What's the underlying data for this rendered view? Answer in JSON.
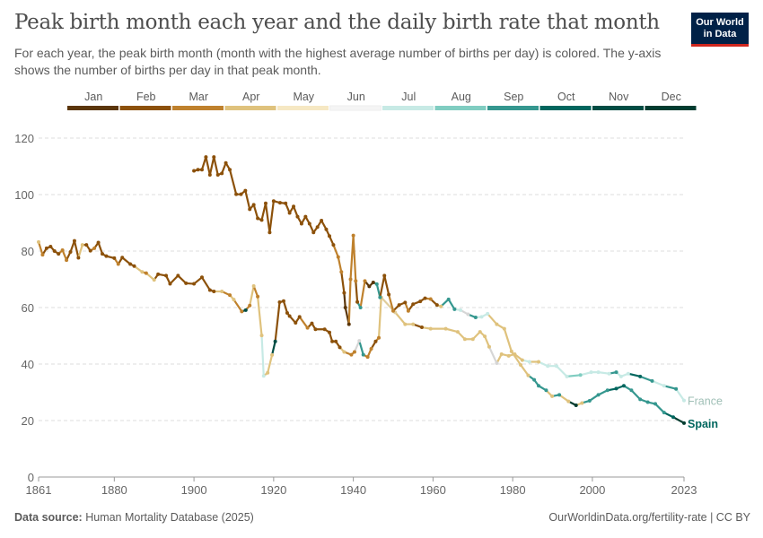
{
  "header": {
    "title": "Peak birth month each year and the daily birth rate that month",
    "subtitle": "For each year, the peak birth month (month with the highest average number of births per day) is colored. The y-axis shows the number of births per day in that peak month.",
    "logo_text": "Our World in Data"
  },
  "footer": {
    "source_label": "Data source:",
    "source": "Human Mortality Database (2025)",
    "right": "OurWorldinData.org/fertility-rate | CC BY"
  },
  "chart_data": {
    "type": "line",
    "title": "Peak birth month each year and the daily birth rate that month",
    "xlabel": "",
    "ylabel": "",
    "xlim": [
      1861,
      2023
    ],
    "ylim": [
      0,
      120
    ],
    "xticks": [
      1861,
      1880,
      1900,
      1920,
      1940,
      1960,
      1980,
      2000,
      2023
    ],
    "yticks": [
      0,
      20,
      40,
      60,
      80,
      100,
      120
    ],
    "grid": "horizontal dashed",
    "legend": {
      "placement": "top",
      "type": "color-scale",
      "months": [
        "Jan",
        "Feb",
        "Mar",
        "Apr",
        "May",
        "Jun",
        "Jul",
        "Aug",
        "Sep",
        "Oct",
        "Nov",
        "Dec"
      ],
      "colors": [
        "#5b360a",
        "#8c510a",
        "#bf812d",
        "#dfc27d",
        "#f6e8c3",
        "#f5f5f5",
        "#c7eae5",
        "#80cdc1",
        "#35978f",
        "#01665e",
        "#004d44",
        "#003c30"
      ]
    },
    "series": [
      {
        "name": "France",
        "label_color": "#9fbfb6",
        "points": [
          [
            1861,
            83.2,
            "Apr"
          ],
          [
            1862,
            78.7,
            "Mar"
          ],
          [
            1863,
            81,
            "Feb"
          ],
          [
            1864,
            81.6,
            "Feb"
          ],
          [
            1865,
            80,
            "Feb"
          ],
          [
            1866,
            79,
            "Feb"
          ],
          [
            1867,
            80.3,
            "Mar"
          ],
          [
            1868,
            76.8,
            "Mar"
          ],
          [
            1869,
            79.7,
            "Feb"
          ],
          [
            1870,
            83.6,
            "Feb"
          ],
          [
            1871,
            77.6,
            "Feb"
          ],
          [
            1872,
            82.2,
            "Apr"
          ],
          [
            1873,
            82.2,
            "Feb"
          ],
          [
            1874,
            80.1,
            "Feb"
          ],
          [
            1875,
            81,
            "Mar"
          ],
          [
            1876,
            83,
            "Feb"
          ],
          [
            1877,
            79,
            "Feb"
          ],
          [
            1878,
            78.2,
            "Feb"
          ],
          [
            1880,
            77.5,
            "Feb"
          ],
          [
            1881,
            75.4,
            "Mar"
          ],
          [
            1882,
            77.7,
            "Feb"
          ],
          [
            1884,
            75.4,
            "Feb"
          ],
          [
            1885,
            74.7,
            "Feb"
          ],
          [
            1887,
            72.6,
            "Apr"
          ],
          [
            1888,
            72.2,
            "Mar"
          ],
          [
            1890,
            69.8,
            "Apr"
          ],
          [
            1891,
            71.8,
            "Feb"
          ],
          [
            1893,
            71.3,
            "Feb"
          ],
          [
            1894,
            68.4,
            "Feb"
          ],
          [
            1896,
            71.3,
            "Feb"
          ],
          [
            1898,
            68.6,
            "Feb"
          ],
          [
            1900,
            68.4,
            "Feb"
          ],
          [
            1902,
            70.7,
            "Feb"
          ],
          [
            1904,
            66.2,
            "Feb"
          ],
          [
            1905,
            65.7,
            "Feb"
          ],
          [
            1907,
            65.7,
            "Apr"
          ],
          [
            1909,
            64.4,
            "Mar"
          ],
          [
            1910,
            62.8,
            "Apr"
          ],
          [
            1912,
            58.6,
            "Mar"
          ],
          [
            1913,
            59.1,
            "Nov"
          ],
          [
            1914,
            60.7,
            "Mar"
          ],
          [
            1915,
            67.6,
            "Apr"
          ],
          [
            1916,
            63.9,
            "Mar"
          ],
          [
            1917,
            50.1,
            "Apr"
          ],
          [
            1917.5,
            35.8,
            "Jul"
          ],
          [
            1918.5,
            36.9,
            "Apr"
          ],
          [
            1919.6,
            43.2,
            "Apr"
          ],
          [
            1920.4,
            48,
            "Nov"
          ],
          [
            1921.5,
            61.9,
            "Feb"
          ],
          [
            1922.5,
            62.3,
            "Feb"
          ],
          [
            1923.4,
            58.1,
            "Feb"
          ],
          [
            1924,
            57,
            "Feb"
          ],
          [
            1925.5,
            54.6,
            "Feb"
          ],
          [
            1926.5,
            56.7,
            "Feb"
          ],
          [
            1928.5,
            52.8,
            "Mar"
          ],
          [
            1929.6,
            54.4,
            "Feb"
          ],
          [
            1930.5,
            52.3,
            "Feb"
          ],
          [
            1932.8,
            52.3,
            "Feb"
          ],
          [
            1934,
            51.2,
            "Feb"
          ],
          [
            1934.7,
            48,
            "Feb"
          ],
          [
            1935.6,
            48,
            "Feb"
          ],
          [
            1936.6,
            45.9,
            "Feb"
          ],
          [
            1937.7,
            44.3,
            "Apr"
          ],
          [
            1939.5,
            43.3,
            "Mar"
          ],
          [
            1940.3,
            44.3,
            "Mar"
          ],
          [
            1941.5,
            48.2,
            "Jun"
          ],
          [
            1942.5,
            43.3,
            "Sep"
          ],
          [
            1943.6,
            42.5,
            "Mar"
          ],
          [
            1944.5,
            45.4,
            "Mar"
          ],
          [
            1945.6,
            48,
            "Feb"
          ],
          [
            1946.4,
            49.3,
            "Mar"
          ],
          [
            1947,
            63.6,
            "Apr"
          ],
          [
            1950.5,
            58.3,
            "May"
          ],
          [
            1953,
            54.1,
            "Apr"
          ],
          [
            1955,
            54.1,
            "Apr"
          ],
          [
            1957.2,
            53,
            "Feb"
          ],
          [
            1959.4,
            52.5,
            "Apr"
          ],
          [
            1963.2,
            52.5,
            "Apr"
          ],
          [
            1966.2,
            51.4,
            "Apr"
          ],
          [
            1968,
            48.8,
            "Apr"
          ],
          [
            1970,
            48.8,
            "Apr"
          ],
          [
            1971.8,
            51.4,
            "Apr"
          ],
          [
            1973,
            49.8,
            "Apr"
          ],
          [
            1974.1,
            46.1,
            "Apr"
          ],
          [
            1976,
            40.3,
            "Jun"
          ],
          [
            1977.2,
            43.5,
            "Apr"
          ],
          [
            1979,
            42.9,
            "Apr"
          ],
          [
            1980.5,
            43.5,
            "Apr"
          ],
          [
            1982.4,
            41.4,
            "Apr"
          ],
          [
            1984.2,
            40.8,
            "Jul"
          ],
          [
            1986.5,
            40.8,
            "Apr"
          ],
          [
            1988.8,
            39.3,
            "Jul"
          ],
          [
            1991,
            39.3,
            "Jul"
          ],
          [
            1993.6,
            35.6,
            "Jul"
          ],
          [
            1997,
            36.1,
            "Aug"
          ],
          [
            1999.7,
            37.1,
            "Jul"
          ],
          [
            2001.5,
            37.1,
            "Jul"
          ],
          [
            2004.2,
            36.6,
            "Jul"
          ],
          [
            2006,
            37.1,
            "Sep"
          ],
          [
            2007.2,
            35.6,
            "Jul"
          ],
          [
            2009,
            36.6,
            "Jul"
          ],
          [
            2012,
            35.6,
            "Oct"
          ],
          [
            2015,
            34,
            "Sep"
          ],
          [
            2018,
            32.3,
            "Jul"
          ],
          [
            2021,
            31.2,
            "Sep"
          ],
          [
            2023,
            27.1,
            "Jul"
          ]
        ]
      },
      {
        "name": "Spain",
        "label_color": "#01665e",
        "points": [
          [
            1900,
            108.4,
            "Feb"
          ],
          [
            1901,
            108.8,
            "Feb"
          ],
          [
            1902,
            108.8,
            "Feb"
          ],
          [
            1903,
            113.3,
            "Feb"
          ],
          [
            1904,
            107,
            "Feb"
          ],
          [
            1905,
            113.3,
            "Feb"
          ],
          [
            1906,
            107,
            "Feb"
          ],
          [
            1907,
            107.5,
            "Feb"
          ],
          [
            1908,
            111.2,
            "Feb"
          ],
          [
            1909,
            108.8,
            "Feb"
          ],
          [
            1910.6,
            100.1,
            "Feb"
          ],
          [
            1911.8,
            100.1,
            "Feb"
          ],
          [
            1912.9,
            101.4,
            "Feb"
          ],
          [
            1914,
            94.8,
            "Feb"
          ],
          [
            1915,
            96.4,
            "Feb"
          ],
          [
            1916,
            91.6,
            "Feb"
          ],
          [
            1917,
            91,
            "Feb"
          ],
          [
            1918,
            96.9,
            "Feb"
          ],
          [
            1919,
            86.6,
            "Feb"
          ],
          [
            1920,
            97.7,
            "Feb"
          ],
          [
            1921.6,
            97.1,
            "Feb"
          ],
          [
            1923,
            96.9,
            "Feb"
          ],
          [
            1924,
            93.5,
            "Feb"
          ],
          [
            1925,
            95.8,
            "Feb"
          ],
          [
            1926,
            92.2,
            "Feb"
          ],
          [
            1927,
            89.7,
            "Feb"
          ],
          [
            1928,
            92.2,
            "Feb"
          ],
          [
            1929,
            89.7,
            "Feb"
          ],
          [
            1930,
            86.6,
            "Feb"
          ],
          [
            1931,
            88.5,
            "Feb"
          ],
          [
            1932,
            90.8,
            "Feb"
          ],
          [
            1933.2,
            87.7,
            "Feb"
          ],
          [
            1934,
            85.3,
            "Feb"
          ],
          [
            1935,
            82.2,
            "Feb"
          ],
          [
            1936.2,
            77.9,
            "Mar"
          ],
          [
            1937,
            72.6,
            "Mar"
          ],
          [
            1937.7,
            65.2,
            "Feb"
          ],
          [
            1938,
            60,
            "Jan"
          ],
          [
            1938.9,
            54.1,
            "Jan"
          ],
          [
            1939.3,
            70,
            "Mar"
          ],
          [
            1940,
            85.5,
            "Mar"
          ],
          [
            1940.6,
            69.4,
            "Mar"
          ],
          [
            1941,
            62,
            "Feb"
          ],
          [
            1941.8,
            60,
            "Sep"
          ],
          [
            1942.9,
            69.4,
            "Mar"
          ],
          [
            1944,
            67.5,
            "Jan"
          ],
          [
            1945,
            68.9,
            "Jan"
          ],
          [
            1945.9,
            68.3,
            "Sep"
          ],
          [
            1946.7,
            63.6,
            "Sep"
          ],
          [
            1947.8,
            71.3,
            "Feb"
          ],
          [
            1948.9,
            64.6,
            "Feb"
          ],
          [
            1950,
            58.8,
            "Mar"
          ],
          [
            1951.5,
            60.9,
            "Feb"
          ],
          [
            1953,
            61.8,
            "Feb"
          ],
          [
            1953.8,
            58.8,
            "Mar"
          ],
          [
            1955,
            61.2,
            "Feb"
          ],
          [
            1956.8,
            62.2,
            "Feb"
          ],
          [
            1958,
            63.3,
            "Feb"
          ],
          [
            1959.4,
            63,
            "Mar"
          ],
          [
            1961,
            60.9,
            "Feb"
          ],
          [
            1962,
            60.4,
            "Apr"
          ],
          [
            1963.9,
            62.9,
            "Sep"
          ],
          [
            1965.4,
            59.4,
            "Sep"
          ],
          [
            1966.9,
            59.1,
            "Jul"
          ],
          [
            1968.8,
            57.6,
            "Jun"
          ],
          [
            1970.7,
            56.5,
            "Sep"
          ],
          [
            1972.2,
            56.7,
            "Jul"
          ],
          [
            1973.7,
            57.8,
            "Jul"
          ],
          [
            1976,
            54.1,
            "Apr"
          ],
          [
            1977.9,
            52.5,
            "Apr"
          ],
          [
            1979.7,
            44.5,
            "Apr"
          ],
          [
            1982,
            39.7,
            "Apr"
          ],
          [
            1983.9,
            36,
            "Apr"
          ],
          [
            1985.4,
            34.4,
            "Sep"
          ],
          [
            1986.5,
            32.3,
            "Sep"
          ],
          [
            1988.4,
            30.7,
            "Sep"
          ],
          [
            1989.9,
            28.6,
            "Apr"
          ],
          [
            1991.7,
            29.1,
            "Sep"
          ],
          [
            1994,
            26.8,
            "Apr"
          ],
          [
            1995.9,
            25.4,
            "Dec"
          ],
          [
            1997.4,
            26.2,
            "Apr"
          ],
          [
            1999.3,
            27,
            "Sep"
          ],
          [
            2001.5,
            29.1,
            "Sep"
          ],
          [
            2003.8,
            30.7,
            "Sep"
          ],
          [
            2006,
            31.3,
            "Oct"
          ],
          [
            2007.9,
            32.3,
            "Oct"
          ],
          [
            2009.8,
            30.7,
            "Sep"
          ],
          [
            2012,
            27.5,
            "Sep"
          ],
          [
            2013.9,
            26.5,
            "Sep"
          ],
          [
            2015.8,
            25.9,
            "Sep"
          ],
          [
            2018,
            22.8,
            "Sep"
          ],
          [
            2020.3,
            21.2,
            "Oct"
          ],
          [
            2023,
            19.1,
            "Dec"
          ]
        ]
      }
    ]
  }
}
